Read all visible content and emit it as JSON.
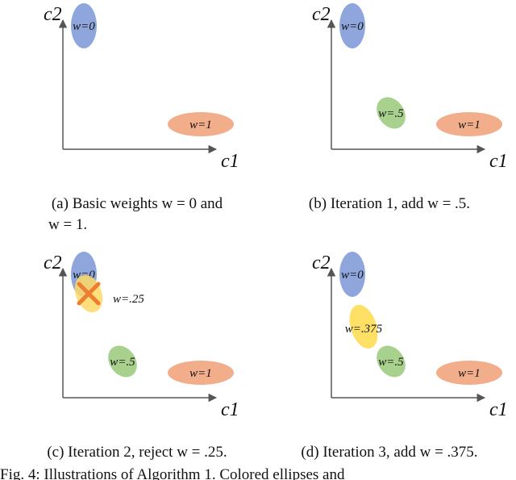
{
  "panels": [
    {
      "axis_y": "c2",
      "axis_x": "c1",
      "ellipses": [
        "w=0",
        "w=1"
      ],
      "caption": [
        "(a) Basic weights w = 0 and",
        "w = 1."
      ]
    },
    {
      "axis_y": "c2",
      "axis_x": "c1",
      "ellipses": [
        "w=0",
        "w=.5",
        "w=1"
      ],
      "caption": [
        "(b) Iteration 1, add w = .5."
      ]
    },
    {
      "axis_y": "c2",
      "axis_x": "c1",
      "ellipses": [
        "w=0",
        "w=.25",
        "w=.5",
        "w=1"
      ],
      "caption": [
        "(c) Iteration 2, reject w = .25."
      ]
    },
    {
      "axis_y": "c2",
      "axis_x": "c1",
      "ellipses": [
        "w=0",
        "w=.375",
        "w=.5",
        "w=1"
      ],
      "caption": [
        "(d) Iteration 3, add w = .375."
      ]
    }
  ],
  "figure_caption": "Fig. 4: Illustrations of Algorithm 1. Colored ellipses and"
}
